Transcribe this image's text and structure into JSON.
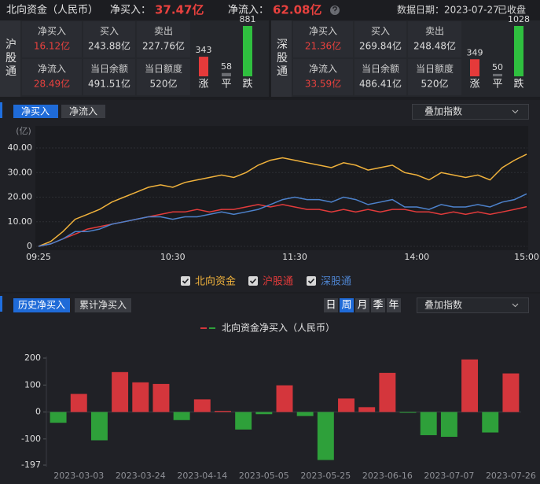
{
  "header": {
    "title": "北向资金（人民币）",
    "net_buy_label": "净买入：",
    "net_buy": "37.47亿",
    "net_inflow_label": "净流入：",
    "net_inflow": "62.08亿",
    "date": "数据日期：2023-07-27",
    "status": "已收盘"
  },
  "panels": [
    {
      "name": "沪股通",
      "cells": [
        {
          "label": "净买入",
          "value": "16.12亿"
        },
        {
          "label": "买入",
          "value": "243.88亿"
        },
        {
          "label": "卖出",
          "value": "227.76亿"
        },
        {
          "label": "净流入",
          "value": "28.49亿"
        },
        {
          "label": "当日余额",
          "value": "491.51亿"
        },
        {
          "label": "当日额度",
          "value": "520亿"
        }
      ],
      "breadth": {
        "labels": [
          "涨",
          "平",
          "跌"
        ],
        "values": [
          343,
          58,
          881
        ],
        "colors": [
          "#e53a3a",
          "#6b6d72",
          "#2fbf3f"
        ]
      }
    },
    {
      "name": "深股通",
      "cells": [
        {
          "label": "净买入",
          "value": "21.36亿"
        },
        {
          "label": "买入",
          "value": "269.84亿"
        },
        {
          "label": "卖出",
          "value": "248.48亿"
        },
        {
          "label": "净流入",
          "value": "33.59亿"
        },
        {
          "label": "当日余额",
          "value": "486.41亿"
        },
        {
          "label": "当日额度",
          "value": "520亿"
        }
      ],
      "breadth": {
        "labels": [
          "涨",
          "平",
          "跌"
        ],
        "values": [
          349,
          50,
          1028
        ],
        "colors": [
          "#e53a3a",
          "#6b6d72",
          "#2fbf3f"
        ]
      }
    }
  ],
  "line_tabs": [
    "净买入",
    "净流入"
  ],
  "overlay": "叠加指数",
  "bar_tabs": [
    "历史净买入",
    "累计净买入"
  ],
  "periods": [
    "日",
    "周",
    "月",
    "季",
    "年"
  ],
  "chart_data": [
    {
      "type": "line",
      "y_label": "(亿)",
      "categories": [
        "09:25",
        null,
        null,
        null,
        null,
        null,
        null,
        null,
        null,
        null,
        null,
        "10:30",
        null,
        null,
        null,
        null,
        null,
        null,
        null,
        null,
        null,
        "11:30",
        null,
        null,
        null,
        null,
        null,
        null,
        null,
        null,
        null,
        "14:00",
        null,
        null,
        null,
        null,
        null,
        null,
        null,
        null,
        "15:00"
      ],
      "series": [
        {
          "name": "北向资金",
          "color": "#f0b23c",
          "values": [
            0,
            2,
            6,
            11,
            13,
            15,
            18,
            20,
            22,
            24,
            25,
            24,
            26,
            27,
            28,
            29,
            28,
            30,
            33,
            35,
            36,
            35,
            34,
            33,
            32,
            34,
            33,
            31,
            32,
            33,
            30,
            29,
            27,
            30,
            29,
            28,
            29,
            27,
            32,
            35,
            37.47
          ]
        },
        {
          "name": "沪股通",
          "color": "#e23b3b",
          "values": [
            0,
            1,
            3,
            5,
            7,
            8,
            9,
            10,
            11,
            12,
            13,
            14,
            14,
            15,
            14,
            15,
            15,
            16,
            17,
            16,
            17,
            16,
            15,
            15,
            14,
            15,
            14,
            15,
            14,
            15,
            15,
            14,
            14,
            13,
            14,
            13,
            14,
            13,
            14,
            15,
            16.12
          ]
        },
        {
          "name": "深股通",
          "color": "#4d82cc",
          "values": [
            0,
            1,
            3,
            6,
            6,
            7,
            9,
            10,
            11,
            12,
            12,
            11,
            12,
            12,
            13,
            14,
            13,
            14,
            15,
            17,
            19,
            20,
            19,
            19,
            18,
            20,
            19,
            17,
            18,
            19,
            16,
            16,
            15,
            17,
            16,
            16,
            17,
            16,
            18,
            19,
            21.36
          ]
        }
      ],
      "ylim": [
        0,
        40
      ],
      "yticks": [
        0,
        {
          "value": 10,
          "label": "10.00"
        },
        {
          "value": 20,
          "label": "20.00"
        },
        {
          "value": 30,
          "label": "30.00"
        },
        {
          "value": 40,
          "label": "40.00"
        }
      ],
      "grid": true,
      "legend": "bottom"
    },
    {
      "type": "bar",
      "categories": [
        null,
        "2023-03-03",
        null,
        null,
        "2023-03-24",
        null,
        null,
        "2023-04-14",
        null,
        null,
        "2023-05-05",
        null,
        null,
        "2023-05-25",
        null,
        null,
        "2023-06-16",
        null,
        null,
        "2023-07-07",
        null,
        null,
        "2023-07-26"
      ],
      "series": [
        {
          "name": "北向资金净买入（人民币）",
          "positive_color": "#d4363c",
          "negative_color": "#2ea03a",
          "values": [
            -40,
            67,
            -105,
            148,
            110,
            104,
            -30,
            47,
            4,
            -65,
            -8,
            99,
            -15,
            -178,
            50,
            18,
            145,
            -3,
            -86,
            -92,
            195,
            -76,
            143
          ]
        }
      ],
      "ylim": [
        -197,
        200
      ],
      "yticks": [
        200,
        100,
        0,
        -100,
        -197
      ],
      "legend": "top"
    }
  ]
}
